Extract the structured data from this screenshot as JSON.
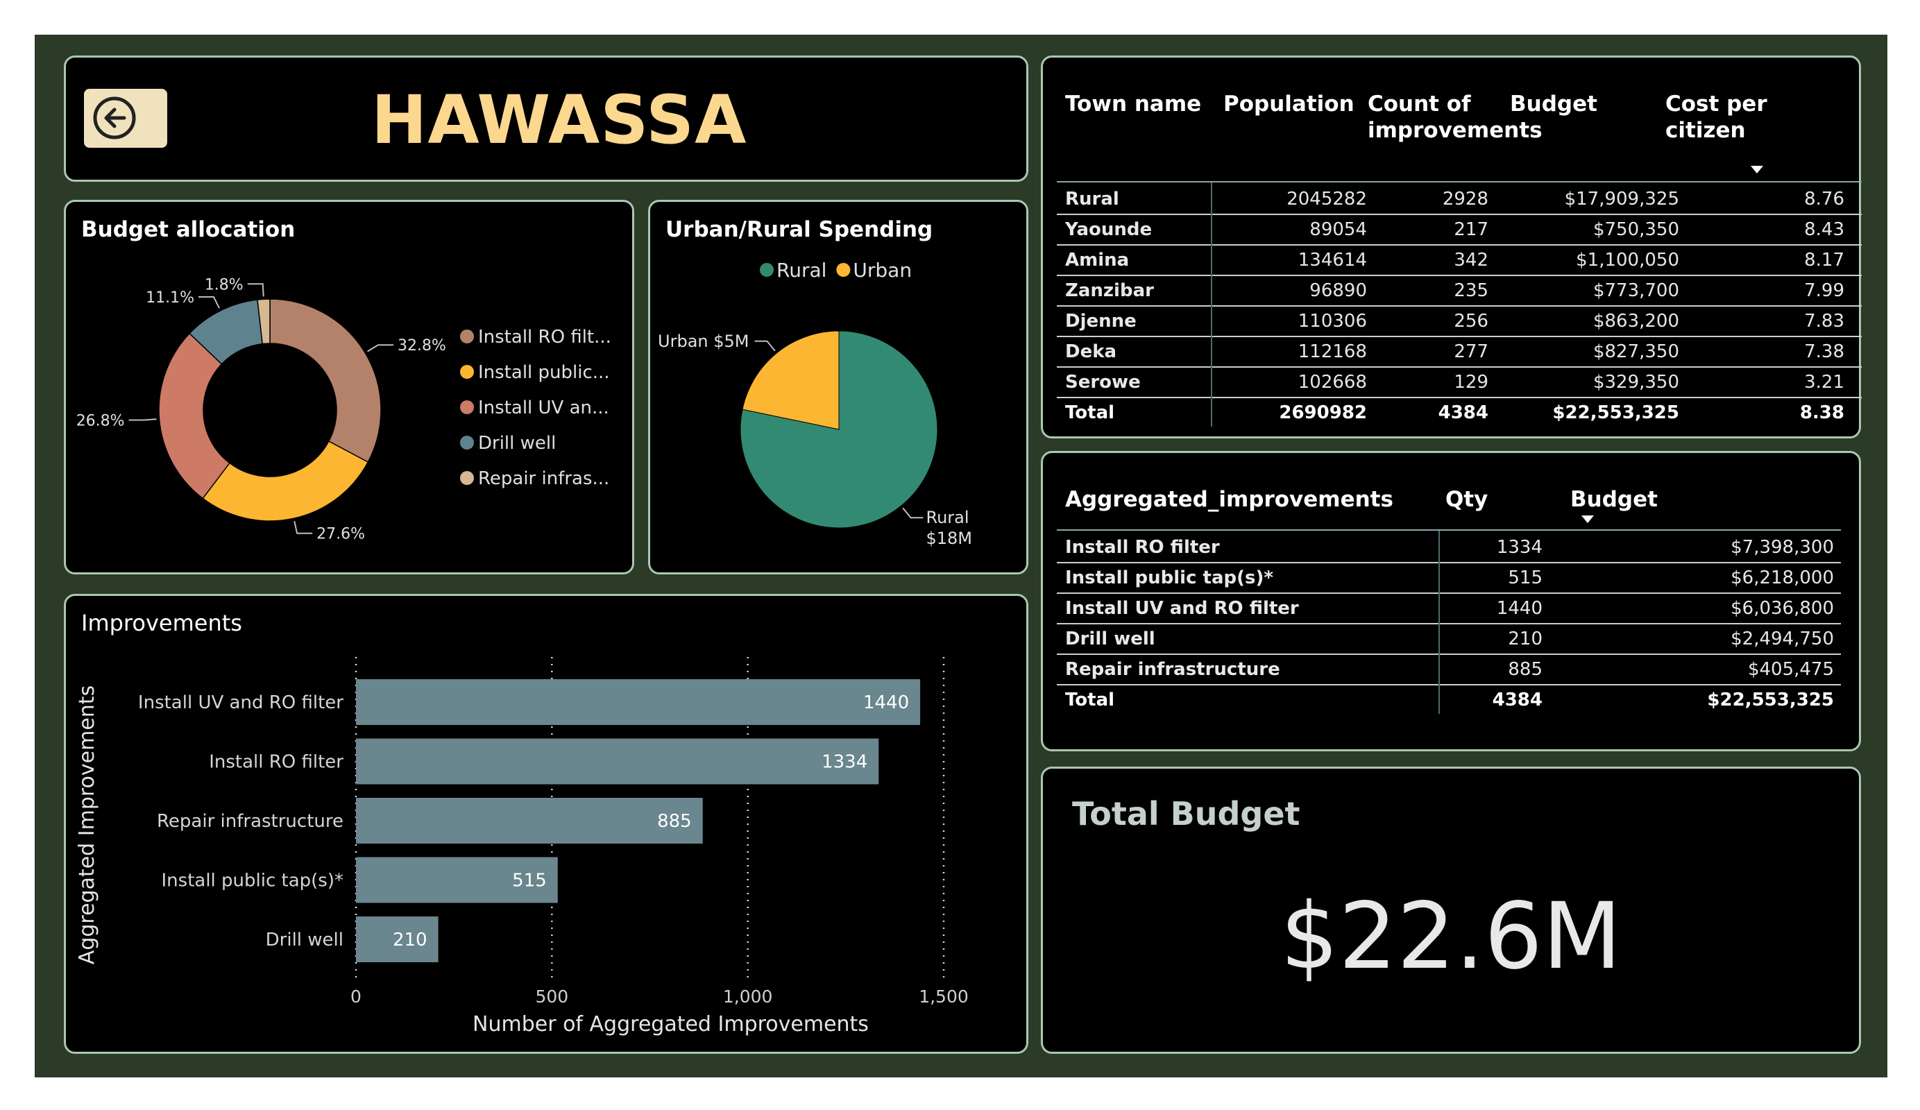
{
  "header": {
    "title": "HAWASSA",
    "back_icon": "back-arrow-circle-icon"
  },
  "colors": {
    "background": "#2c3a28",
    "panel": "#000000",
    "border": "#a9c8b0",
    "title": "#fcd88f",
    "ro": "#b4826a",
    "tap": "#fdb632",
    "uv": "#cd7a66",
    "well": "#5f828f",
    "repair": "#d6b893",
    "rural": "#328a72",
    "urban": "#fdb632",
    "bar": "#6a868e"
  },
  "budget_allocation": {
    "title": "Budget allocation",
    "chart_data": {
      "type": "pie",
      "donut": true,
      "slices": [
        {
          "label": "Install RO filt...",
          "value": 32.8,
          "display": "32.8%",
          "color": "#b4826a"
        },
        {
          "label": "Install public...",
          "value": 27.6,
          "display": "27.6%",
          "color": "#fdb632"
        },
        {
          "label": "Install UV an...",
          "value": 26.8,
          "display": "26.8%",
          "color": "#cd7a66"
        },
        {
          "label": "Drill well",
          "value": 11.1,
          "display": "11.1%",
          "color": "#5f828f"
        },
        {
          "label": "Repair infras...",
          "value": 1.8,
          "display": "1.8%",
          "color": "#d6b893"
        }
      ],
      "legend_position": "right"
    }
  },
  "urban_rural": {
    "title": "Urban/Rural Spending",
    "chart_data": {
      "type": "pie",
      "slices": [
        {
          "label": "Rural",
          "value": 18,
          "display": [
            "Rural",
            "$18M"
          ],
          "color": "#328a72"
        },
        {
          "label": "Urban",
          "value": 5,
          "display": [
            "Urban $5M"
          ],
          "color": "#fdb632"
        }
      ],
      "legend": [
        "Rural",
        "Urban"
      ],
      "legend_position": "top"
    }
  },
  "improvements": {
    "title": "Improvements",
    "chart_data": {
      "type": "bar",
      "orientation": "horizontal",
      "categories": [
        "Install UV and RO filter",
        "Install RO filter",
        "Repair infrastructure",
        "Install public tap(s)*",
        "Drill well"
      ],
      "values": [
        1440,
        1334,
        885,
        515,
        210
      ],
      "xlabel": "Number of Aggregated Improvements",
      "ylabel": "Aggregated Improvements",
      "xlim": [
        0,
        1500
      ],
      "xticks": [
        0,
        500,
        1000,
        1500
      ],
      "xtick_labels": [
        "0",
        "500",
        "1,000",
        "1,500"
      ],
      "grid": "vertical dotted"
    }
  },
  "town_table": {
    "headers": [
      "Town name",
      "Population",
      "Count of improvements",
      "Budget",
      "Cost per citizen"
    ],
    "header_lines": [
      [
        "Town name"
      ],
      [
        "Population"
      ],
      [
        "Count of",
        "improvements"
      ],
      [
        "Budget"
      ],
      [
        "Cost per",
        "citizen"
      ]
    ],
    "rows": [
      [
        "Rural",
        "2045282",
        "2928",
        "$17,909,325",
        "8.76"
      ],
      [
        "Yaounde",
        "89054",
        "217",
        "$750,350",
        "8.43"
      ],
      [
        "Amina",
        "134614",
        "342",
        "$1,100,050",
        "8.17"
      ],
      [
        "Zanzibar",
        "96890",
        "235",
        "$773,700",
        "7.99"
      ],
      [
        "Djenne",
        "110306",
        "256",
        "$863,200",
        "7.83"
      ],
      [
        "Deka",
        "112168",
        "277",
        "$827,350",
        "7.38"
      ],
      [
        "Serowe",
        "102668",
        "129",
        "$329,350",
        "3.21"
      ]
    ],
    "total": [
      "Total",
      "2690982",
      "4384",
      "$22,553,325",
      "8.38"
    ]
  },
  "agg_table": {
    "headers": [
      "Aggregated_improvements",
      "Qty",
      "Budget"
    ],
    "rows": [
      [
        "Install RO filter",
        "1334",
        "$7,398,300"
      ],
      [
        "Install public tap(s)*",
        "515",
        "$6,218,000"
      ],
      [
        "Install UV and RO filter",
        "1440",
        "$6,036,800"
      ],
      [
        "Drill well",
        "210",
        "$2,494,750"
      ],
      [
        "Repair infrastructure",
        "885",
        "$405,475"
      ]
    ],
    "total": [
      "Total",
      "4384",
      "$22,553,325"
    ]
  },
  "total_budget": {
    "title": "Total Budget",
    "value": "$22.6M"
  }
}
